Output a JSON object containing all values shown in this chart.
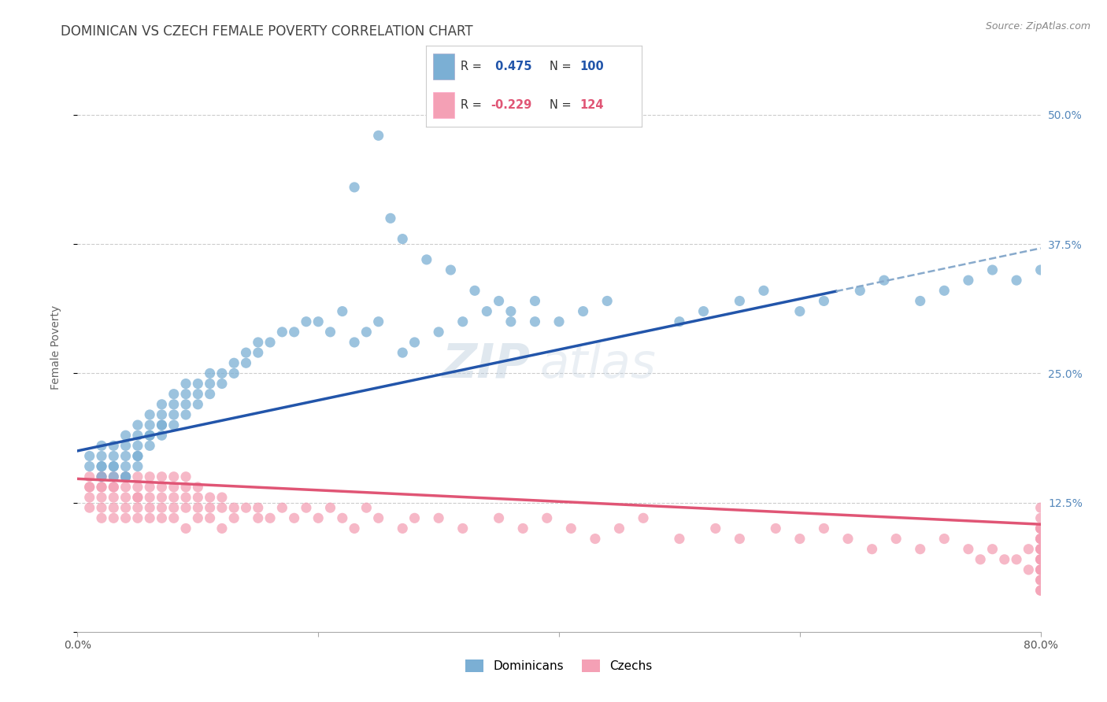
{
  "title": "DOMINICAN VS CZECH FEMALE POVERTY CORRELATION CHART",
  "source": "Source: ZipAtlas.com",
  "ylabel": "Female Poverty",
  "x_min": 0.0,
  "x_max": 0.8,
  "y_min": 0.0,
  "y_max": 0.55,
  "x_ticks": [
    0.0,
    0.2,
    0.4,
    0.6,
    0.8
  ],
  "x_tick_labels": [
    "0.0%",
    "",
    "",
    "",
    "80.0%"
  ],
  "y_ticks": [
    0.0,
    0.125,
    0.25,
    0.375,
    0.5
  ],
  "y_tick_labels": [
    "",
    "12.5%",
    "25.0%",
    "37.5%",
    "50.0%"
  ],
  "dominican_R": 0.475,
  "dominican_N": 100,
  "czech_R": -0.229,
  "czech_N": 124,
  "dominican_color": "#7BAFD4",
  "dominican_line_color": "#2255AA",
  "czech_color": "#F4A0B5",
  "czech_line_color": "#E05575",
  "watermark": "ZIPatlas",
  "legend_label_dominican": "Dominicans",
  "legend_label_czech": "Czechs",
  "dominican_intercept": 0.175,
  "dominican_slope": 0.245,
  "czech_intercept": 0.148,
  "czech_slope": -0.055,
  "background_color": "#FFFFFF",
  "grid_color": "#CCCCCC",
  "title_color": "#444444",
  "right_tick_color": "#5588BB",
  "dom_x": [
    0.01,
    0.01,
    0.02,
    0.02,
    0.02,
    0.02,
    0.02,
    0.03,
    0.03,
    0.03,
    0.03,
    0.03,
    0.04,
    0.04,
    0.04,
    0.04,
    0.04,
    0.04,
    0.05,
    0.05,
    0.05,
    0.05,
    0.05,
    0.05,
    0.06,
    0.06,
    0.06,
    0.06,
    0.06,
    0.07,
    0.07,
    0.07,
    0.07,
    0.07,
    0.08,
    0.08,
    0.08,
    0.08,
    0.09,
    0.09,
    0.09,
    0.09,
    0.1,
    0.1,
    0.1,
    0.11,
    0.11,
    0.11,
    0.12,
    0.12,
    0.13,
    0.13,
    0.14,
    0.14,
    0.15,
    0.15,
    0.16,
    0.17,
    0.18,
    0.19,
    0.2,
    0.21,
    0.22,
    0.23,
    0.24,
    0.25,
    0.27,
    0.28,
    0.3,
    0.32,
    0.34,
    0.36,
    0.38,
    0.4,
    0.42,
    0.44,
    0.5,
    0.52,
    0.55,
    0.57,
    0.6,
    0.62,
    0.65,
    0.67,
    0.7,
    0.72,
    0.74,
    0.76,
    0.78,
    0.8,
    0.23,
    0.25,
    0.26,
    0.27,
    0.29,
    0.31,
    0.33,
    0.35,
    0.36,
    0.38
  ],
  "dom_y": [
    0.16,
    0.17,
    0.15,
    0.16,
    0.17,
    0.18,
    0.16,
    0.15,
    0.16,
    0.17,
    0.18,
    0.16,
    0.15,
    0.16,
    0.17,
    0.18,
    0.19,
    0.15,
    0.17,
    0.18,
    0.19,
    0.2,
    0.16,
    0.17,
    0.18,
    0.19,
    0.2,
    0.21,
    0.19,
    0.19,
    0.2,
    0.21,
    0.22,
    0.2,
    0.2,
    0.21,
    0.22,
    0.23,
    0.21,
    0.22,
    0.23,
    0.24,
    0.22,
    0.23,
    0.24,
    0.23,
    0.24,
    0.25,
    0.24,
    0.25,
    0.25,
    0.26,
    0.26,
    0.27,
    0.27,
    0.28,
    0.28,
    0.29,
    0.29,
    0.3,
    0.3,
    0.29,
    0.31,
    0.28,
    0.29,
    0.3,
    0.27,
    0.28,
    0.29,
    0.3,
    0.31,
    0.3,
    0.32,
    0.3,
    0.31,
    0.32,
    0.3,
    0.31,
    0.32,
    0.33,
    0.31,
    0.32,
    0.33,
    0.34,
    0.32,
    0.33,
    0.34,
    0.35,
    0.34,
    0.35,
    0.43,
    0.48,
    0.4,
    0.38,
    0.36,
    0.35,
    0.33,
    0.32,
    0.31,
    0.3
  ],
  "czech_x": [
    0.01,
    0.01,
    0.01,
    0.01,
    0.01,
    0.02,
    0.02,
    0.02,
    0.02,
    0.02,
    0.02,
    0.02,
    0.03,
    0.03,
    0.03,
    0.03,
    0.03,
    0.03,
    0.04,
    0.04,
    0.04,
    0.04,
    0.04,
    0.05,
    0.05,
    0.05,
    0.05,
    0.05,
    0.05,
    0.06,
    0.06,
    0.06,
    0.06,
    0.06,
    0.07,
    0.07,
    0.07,
    0.07,
    0.07,
    0.08,
    0.08,
    0.08,
    0.08,
    0.08,
    0.09,
    0.09,
    0.09,
    0.09,
    0.09,
    0.1,
    0.1,
    0.1,
    0.1,
    0.11,
    0.11,
    0.11,
    0.12,
    0.12,
    0.12,
    0.13,
    0.13,
    0.14,
    0.15,
    0.15,
    0.16,
    0.17,
    0.18,
    0.19,
    0.2,
    0.21,
    0.22,
    0.23,
    0.24,
    0.25,
    0.27,
    0.28,
    0.3,
    0.32,
    0.35,
    0.37,
    0.39,
    0.41,
    0.43,
    0.45,
    0.47,
    0.5,
    0.53,
    0.55,
    0.58,
    0.6,
    0.62,
    0.64,
    0.66,
    0.68,
    0.7,
    0.72,
    0.74,
    0.75,
    0.76,
    0.77,
    0.78,
    0.79,
    0.79,
    0.8,
    0.8,
    0.8,
    0.8,
    0.8,
    0.8,
    0.8,
    0.8,
    0.8,
    0.8,
    0.8,
    0.8,
    0.8,
    0.8,
    0.8,
    0.8,
    0.8,
    0.8,
    0.8,
    0.8,
    0.8
  ],
  "czech_y": [
    0.14,
    0.15,
    0.13,
    0.14,
    0.12,
    0.14,
    0.15,
    0.13,
    0.14,
    0.12,
    0.15,
    0.11,
    0.14,
    0.13,
    0.15,
    0.12,
    0.14,
    0.11,
    0.13,
    0.14,
    0.12,
    0.15,
    0.11,
    0.13,
    0.14,
    0.12,
    0.15,
    0.11,
    0.13,
    0.13,
    0.14,
    0.12,
    0.15,
    0.11,
    0.13,
    0.14,
    0.12,
    0.15,
    0.11,
    0.13,
    0.14,
    0.12,
    0.15,
    0.11,
    0.13,
    0.14,
    0.12,
    0.15,
    0.1,
    0.13,
    0.14,
    0.12,
    0.11,
    0.13,
    0.12,
    0.11,
    0.13,
    0.12,
    0.1,
    0.12,
    0.11,
    0.12,
    0.12,
    0.11,
    0.11,
    0.12,
    0.11,
    0.12,
    0.11,
    0.12,
    0.11,
    0.1,
    0.12,
    0.11,
    0.1,
    0.11,
    0.11,
    0.1,
    0.11,
    0.1,
    0.11,
    0.1,
    0.09,
    0.1,
    0.11,
    0.09,
    0.1,
    0.09,
    0.1,
    0.09,
    0.1,
    0.09,
    0.08,
    0.09,
    0.08,
    0.09,
    0.08,
    0.07,
    0.08,
    0.07,
    0.07,
    0.06,
    0.08,
    0.07,
    0.09,
    0.05,
    0.11,
    0.08,
    0.06,
    0.1,
    0.07,
    0.09,
    0.05,
    0.08,
    0.12,
    0.06,
    0.1,
    0.04,
    0.08,
    0.06,
    0.1,
    0.04,
    0.09,
    0.07
  ]
}
